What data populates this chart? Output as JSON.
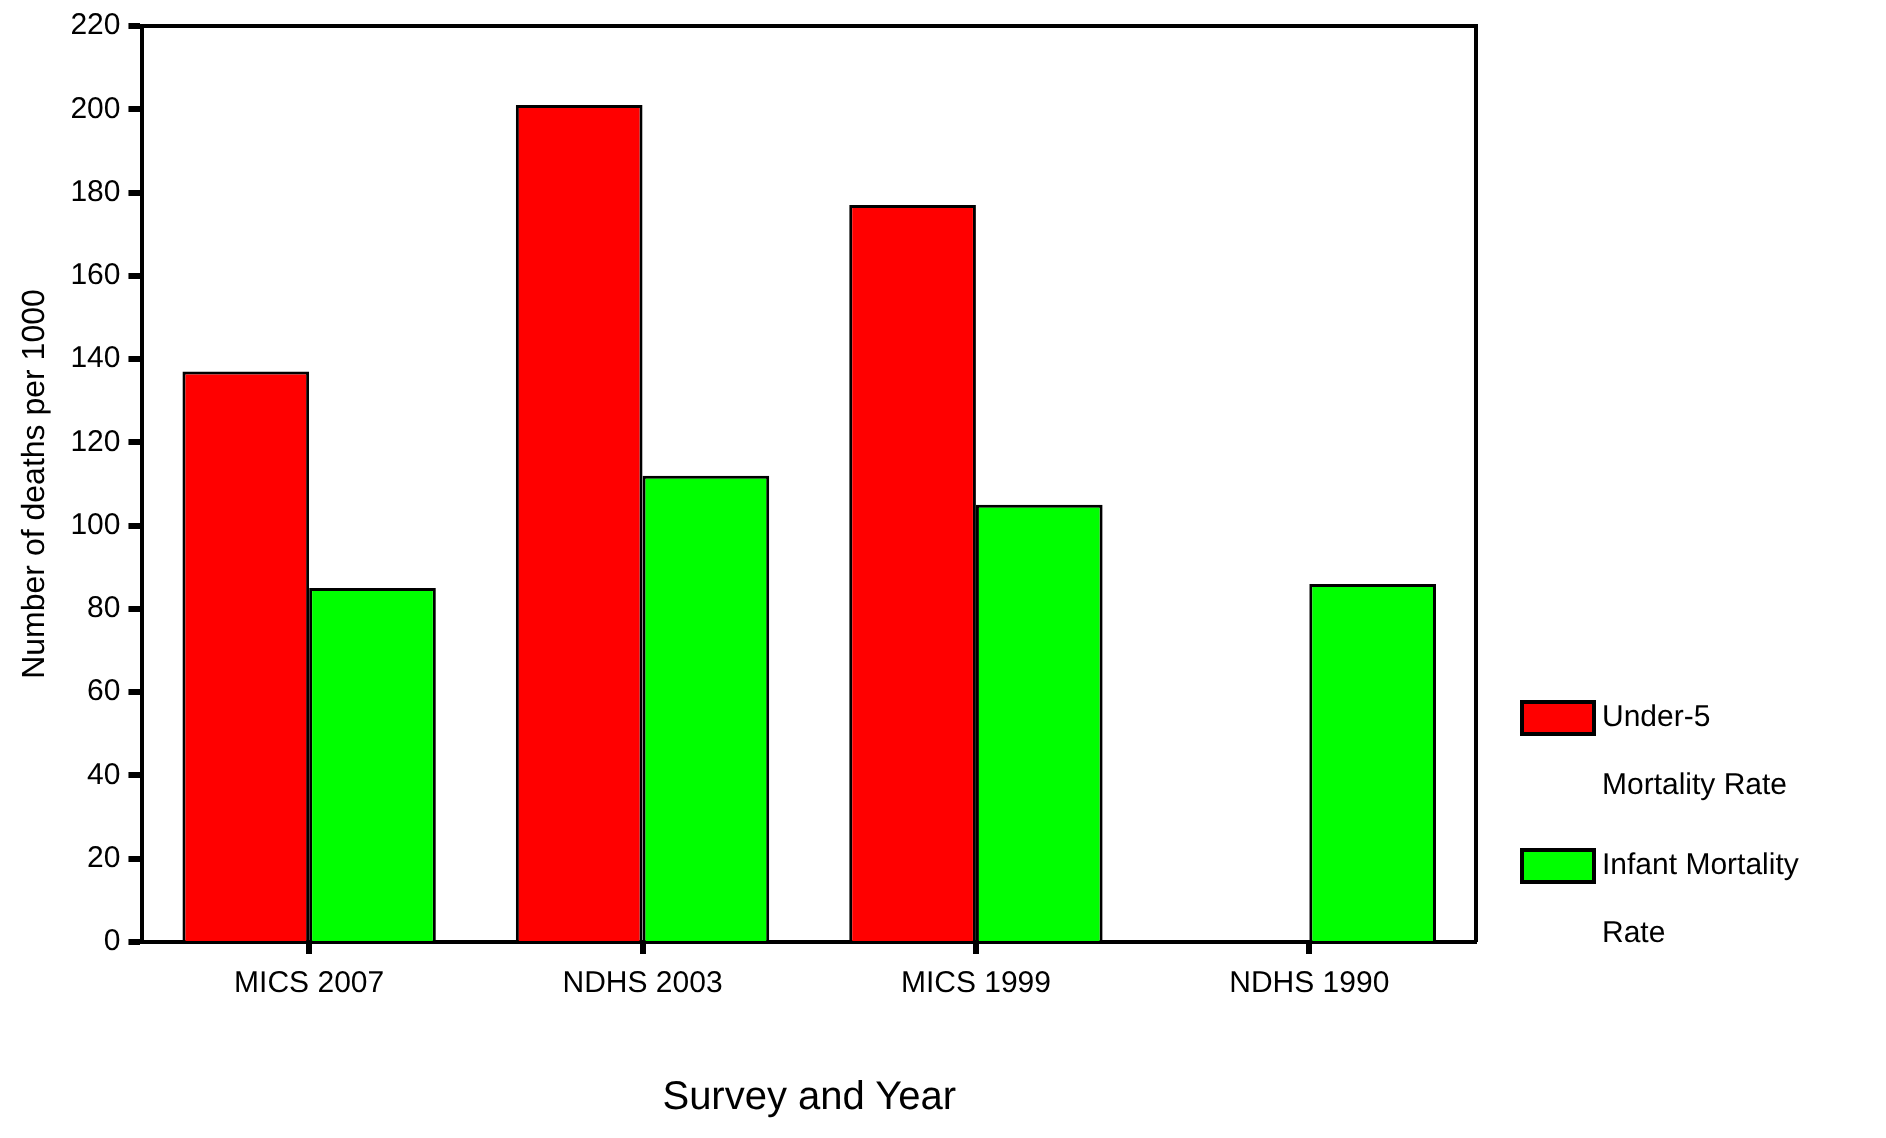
{
  "chart_data": {
    "type": "bar",
    "categories": [
      "MICS 2007",
      "NDHS 2003",
      "MICS 1999",
      "NDHS 1990"
    ],
    "series": [
      {
        "name": "Under-5 Mortality Rate",
        "color": "#ff0000",
        "values": [
          137,
          201,
          177,
          null
        ]
      },
      {
        "name": "Infant Mortality Rate",
        "color": "#00ff00",
        "values": [
          85,
          112,
          105,
          86
        ]
      }
    ],
    "xlabel": "Survey and Year",
    "ylabel": "Number of deaths per 1000",
    "ylim": [
      0,
      220
    ],
    "yticks": [
      0,
      20,
      40,
      60,
      80,
      100,
      120,
      140,
      160,
      180,
      200,
      220
    ],
    "legend": "right"
  }
}
